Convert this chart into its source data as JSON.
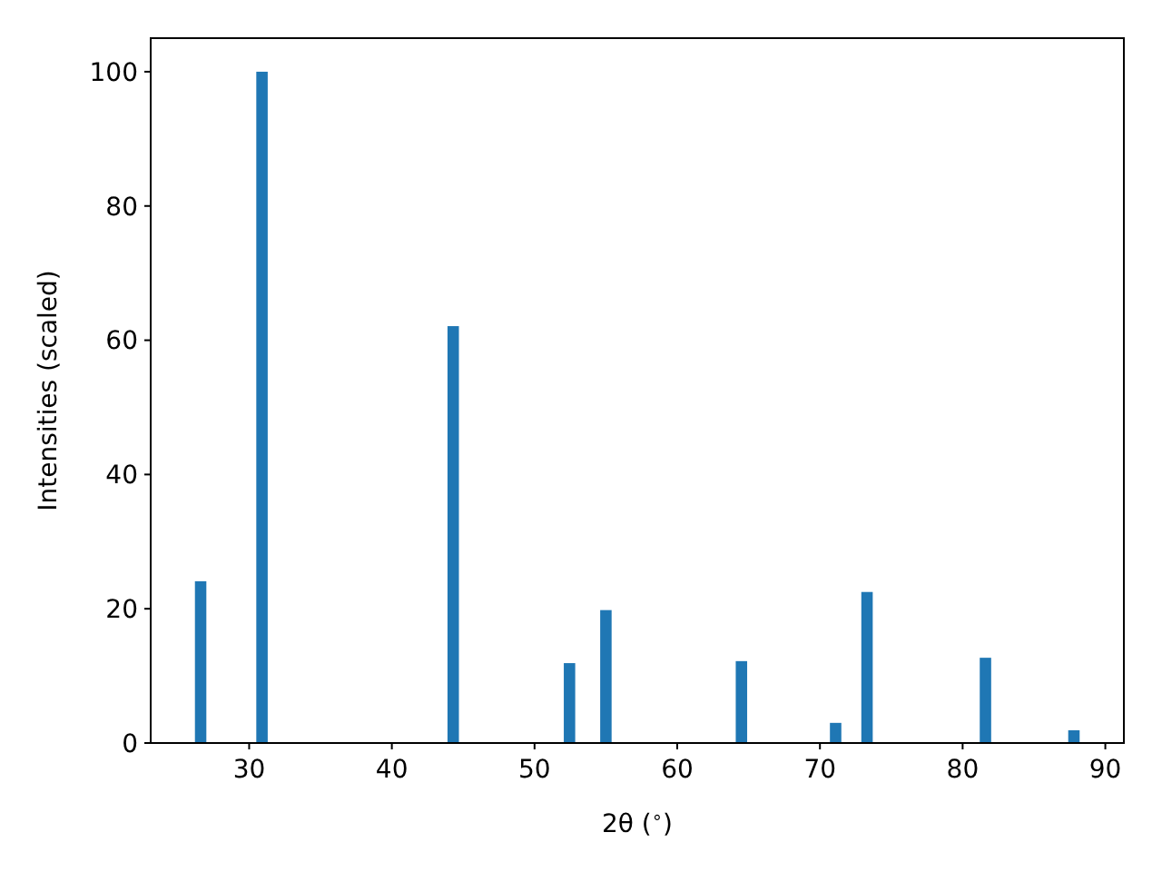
{
  "chart_data": {
    "type": "bar",
    "xlabel": "2θ ($^{∘}$)",
    "ylabel": "Intensities (scaled)",
    "x": [
      26.6,
      30.9,
      44.3,
      52.45,
      55.0,
      64.5,
      71.1,
      73.3,
      81.6,
      87.8
    ],
    "values": [
      24.1,
      100,
      62.1,
      11.9,
      19.8,
      12.2,
      3.0,
      22.5,
      12.7,
      1.9
    ],
    "color": "#1f77b4",
    "xlim": [
      23.1,
      91.3
    ],
    "xticks": [
      30,
      40,
      50,
      60,
      70,
      80,
      90
    ],
    "ylim": [
      0,
      105
    ],
    "yticks": [
      0,
      20,
      40,
      60,
      80,
      100
    ]
  }
}
